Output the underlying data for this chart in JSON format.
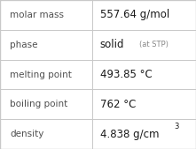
{
  "rows": [
    {
      "label": "molar mass",
      "value": "557.64 g/mol",
      "suffix": null,
      "superscript": null
    },
    {
      "label": "phase",
      "value": "solid",
      "suffix": "(at STP)",
      "superscript": null
    },
    {
      "label": "melting point",
      "value": "493.85 °C",
      "suffix": null,
      "superscript": null
    },
    {
      "label": "boiling point",
      "value": "762 °C",
      "suffix": null,
      "superscript": null
    },
    {
      "label": "density",
      "value": "4.838 g/cm",
      "suffix": null,
      "superscript": "3"
    }
  ],
  "col_split": 0.47,
  "bg_color": "#ffffff",
  "line_color": "#c8c8c8",
  "label_color": "#505050",
  "value_color": "#1a1a1a",
  "suffix_color": "#888888",
  "label_fontsize": 7.5,
  "value_fontsize": 8.5,
  "suffix_fontsize": 6.0,
  "super_fontsize": 6.0
}
